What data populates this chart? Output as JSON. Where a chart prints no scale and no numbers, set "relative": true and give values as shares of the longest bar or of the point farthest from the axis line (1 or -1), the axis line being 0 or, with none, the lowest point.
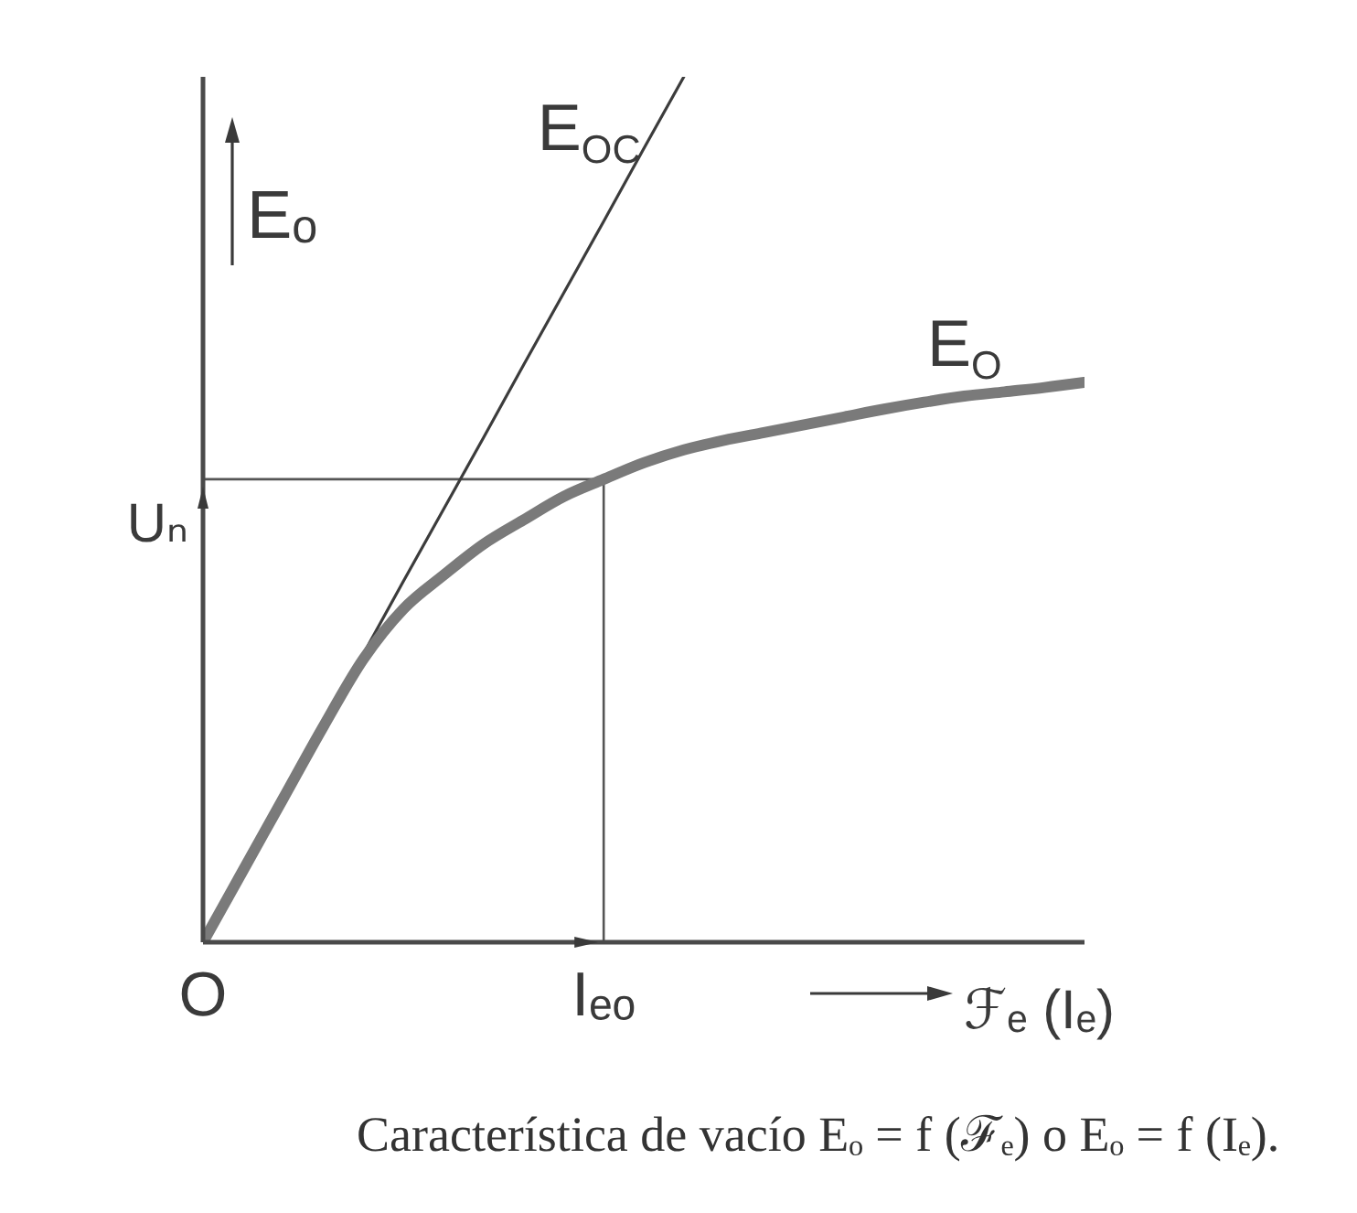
{
  "chart_data": {
    "type": "line",
    "relative": true,
    "xlabel": "ℱₑ (Iₑ)",
    "ylabel": "Eₒ",
    "categories": [
      "O",
      null,
      null,
      null,
      null,
      null,
      null,
      null,
      null,
      null,
      "Iₑₒ",
      null,
      null,
      null,
      null,
      null,
      null,
      null,
      null,
      null,
      null,
      null,
      null
    ],
    "series": [
      {
        "name": "E$_{OC}$",
        "color": "#3c3c3c",
        "values": [
          0,
          0.083,
          0.167,
          0.25,
          0.333,
          0.417,
          0.5,
          0.583,
          0.667,
          0.75,
          0.833,
          0.917,
          1,
          null,
          null,
          null,
          null,
          null,
          null,
          null,
          null,
          null,
          null
        ]
      },
      {
        "name": "E$_{O}$",
        "color": "#7a7a7a",
        "values": [
          0,
          0.083,
          0.166,
          0.249,
          0.327,
          0.385,
          0.424,
          0.46,
          0.488,
          0.515,
          0.535,
          0.554,
          0.569,
          0.58,
          0.589,
          0.598,
          0.607,
          0.616,
          0.624,
          0.631,
          0.636,
          0.641,
          0.647
        ]
      }
    ],
    "ref_lines": [
      {
        "axis": "y",
        "value": 0.535,
        "label": "Uₙ",
        "color": "#555555"
      },
      {
        "axis": "x",
        "value": "Iₑₒ",
        "color": "#555555"
      }
    ],
    "annotations": [
      "Característica de vacío Eₒ = f (ℱₑ) o Eₒ = f (Iₑ)."
    ]
  }
}
